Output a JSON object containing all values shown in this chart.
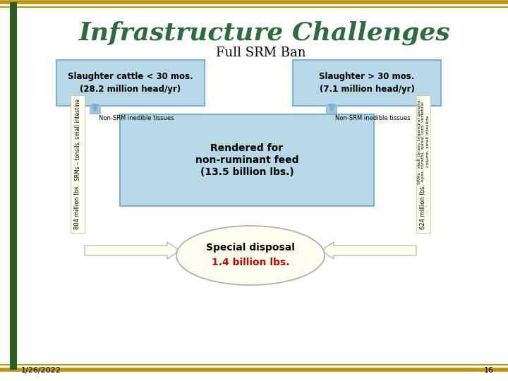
{
  "title": "Infrastructure Challenges",
  "subtitle": "Full SRM Ban",
  "title_color": "#2E6B3E",
  "bg_color": "#FFFFFF",
  "border_gold": "#B8960C",
  "border_green": "#2E5E1E",
  "box_blue_fill": "#B8D8E8",
  "box_blue_edge": "#7BAFD4",
  "yellow_fill": "#FFFFF0",
  "yellow_edge": "#CCCCAA",
  "center_box_fill": "#B8D8E8",
  "ellipse_fill": "#FFFFF0",
  "arrow_blue": "#7BAFD4",
  "box1_line1": "Slaughter cattle < 30 mos.",
  "box1_line2": "(28.2 million head/yr)",
  "box2_line1": "Slaughter > 30 mos.",
  "box2_line2": "(7.1 million head/yr)",
  "center_line1": "Rendered for",
  "center_line2": "non-ruminant feed",
  "center_line3": "(13.5 billion lbs.)",
  "ellipse_line1": "Special disposal",
  "ellipse_line2": "1.4 billion lbs.",
  "ellipse_line2_color": "#CC0000",
  "left_bar_text1": "804 million lbs.",
  "left_bar_text2": "SRMs – tonsils, small intestine",
  "right_bar_text1": "624 million lbs.",
  "right_bar_text2": "SRMs - skull (brain, trigeminal ganglia,",
  "right_bar_text3": "eyes, tonsils), spinal cord, vertebral",
  "right_bar_text4": "column, small intestine",
  "non_srm_left": "Non-SRM inedible tissues",
  "non_srm_right": "Non-SRM inedible tissues",
  "date_text": "1/26/2022",
  "page_num": "16"
}
